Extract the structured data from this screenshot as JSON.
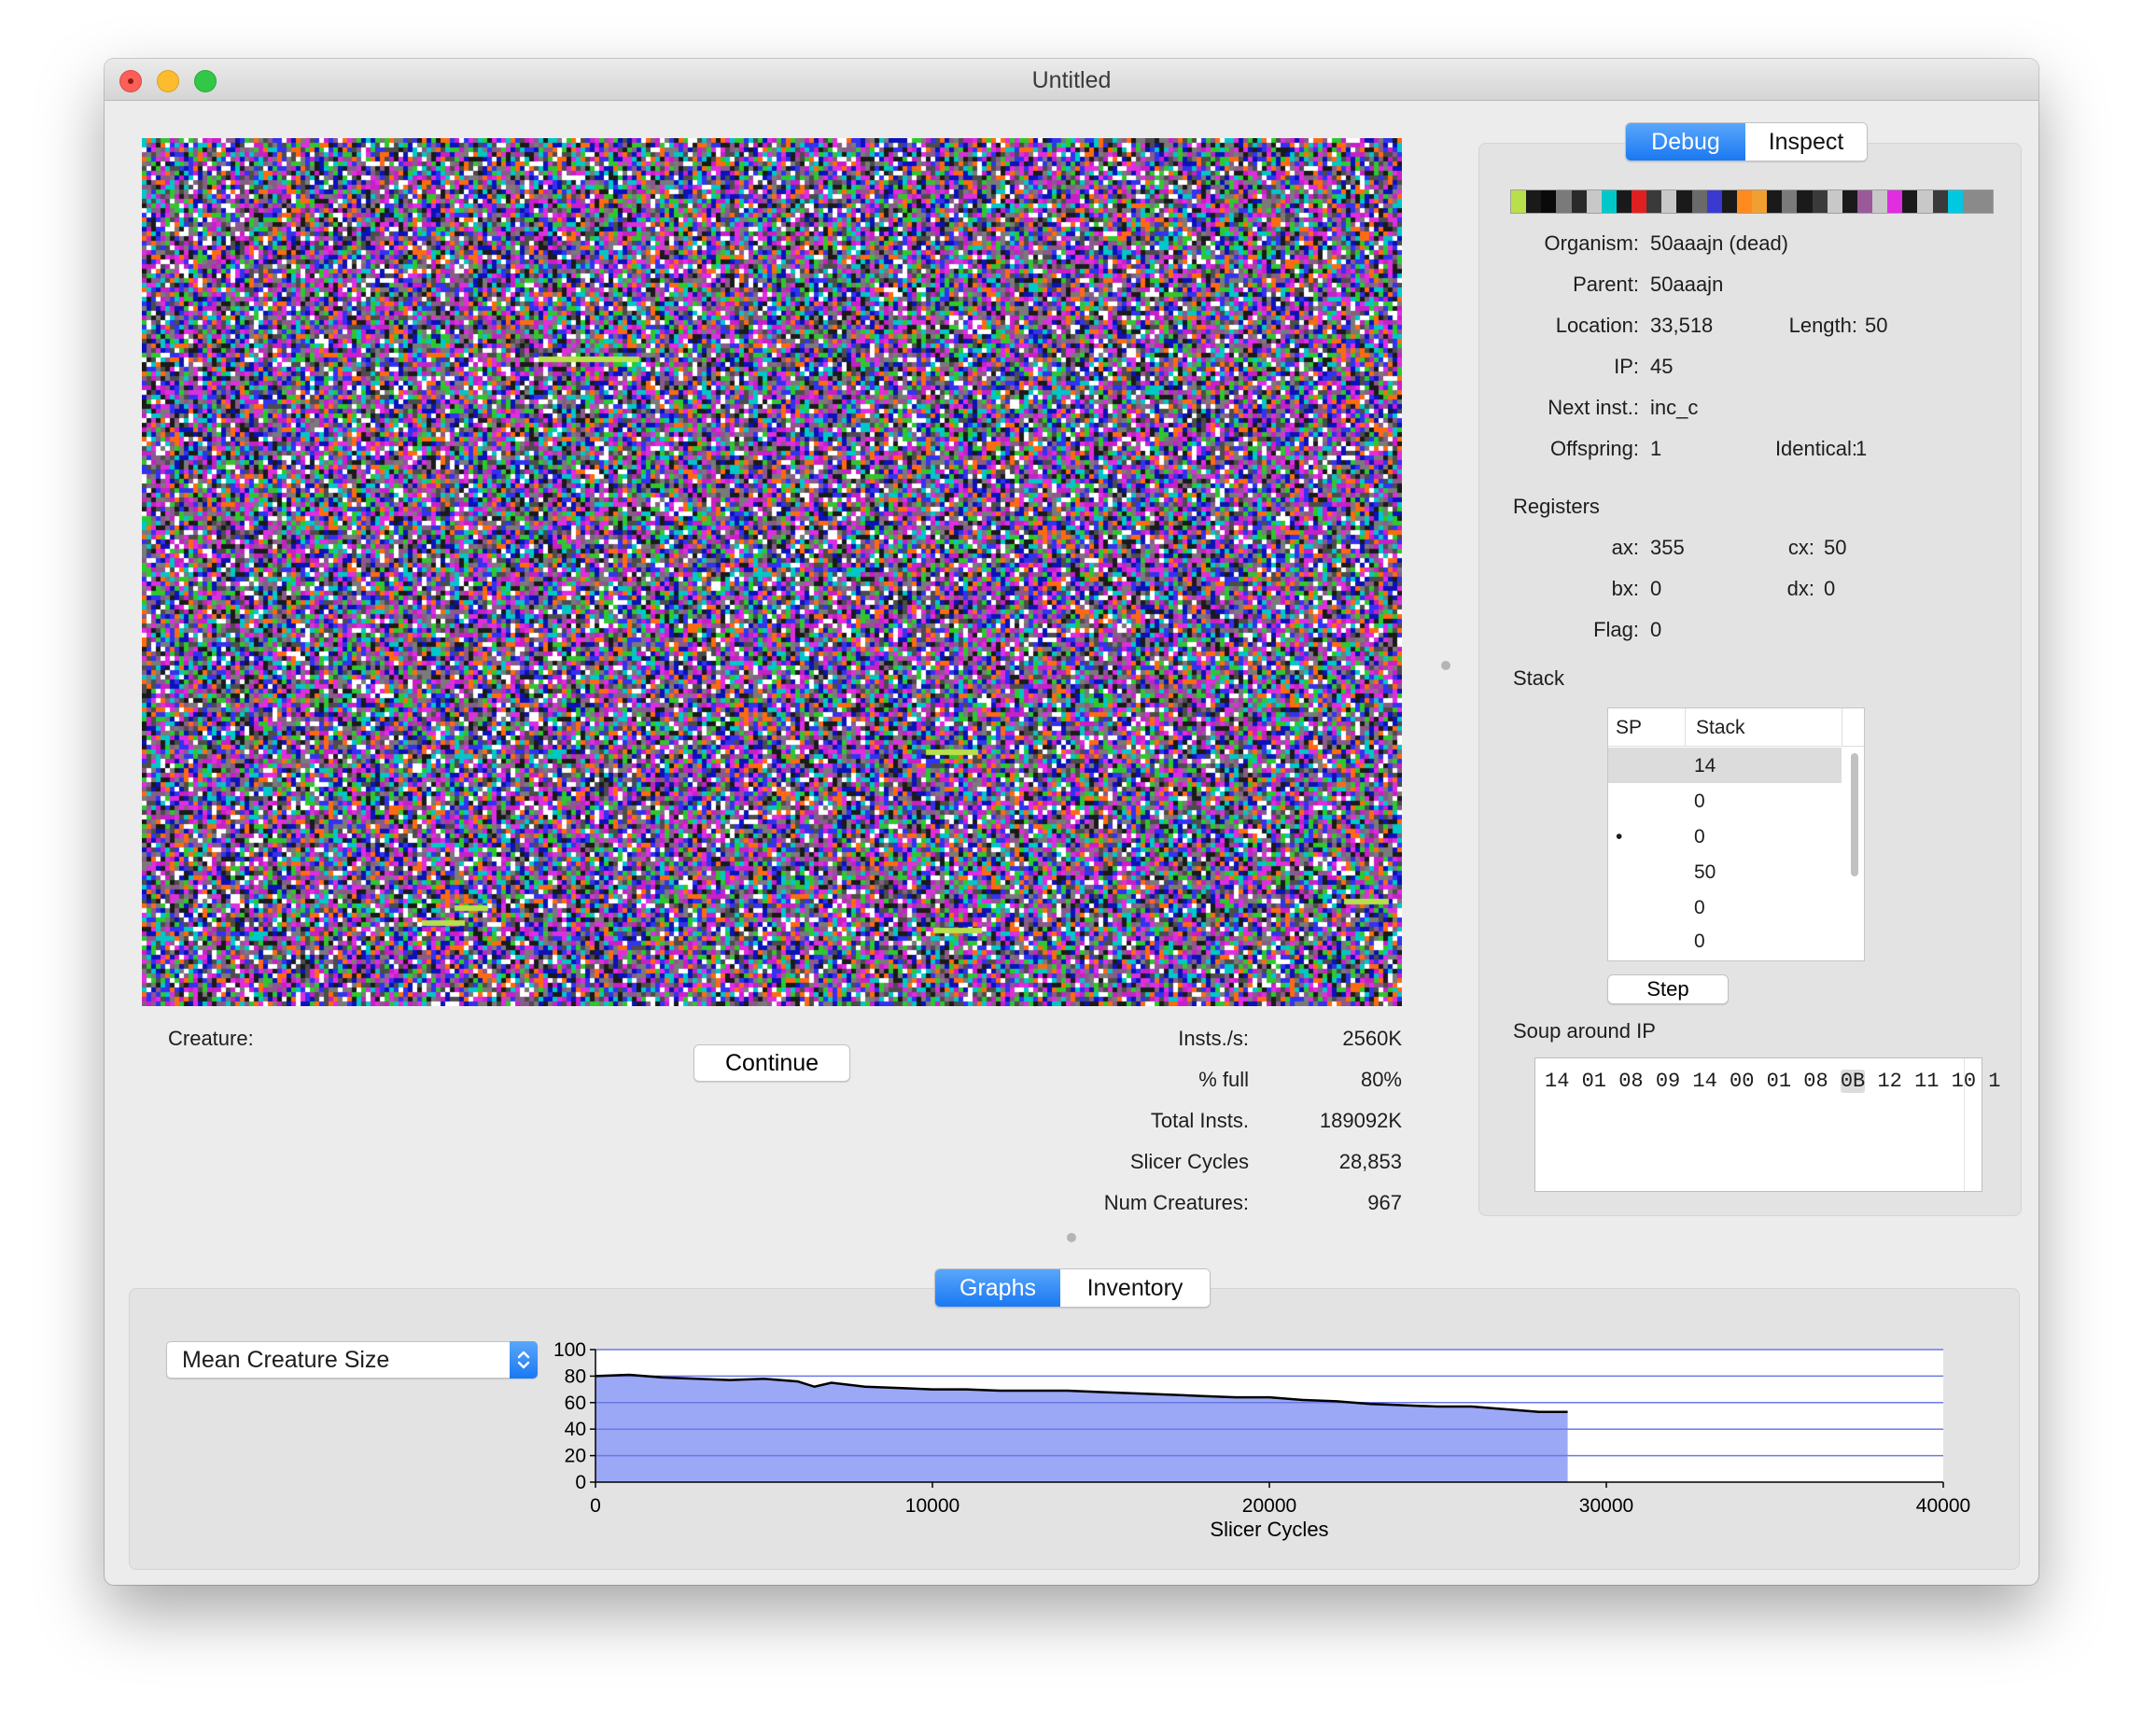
{
  "window": {
    "title": "Untitled"
  },
  "soup_colors": [
    "#1a1a1a",
    "#0b12b8",
    "#c81fc8",
    "#ff6a10",
    "#7a7a7a",
    "#3232f0",
    "#e02de0",
    "#00c8c8",
    "#2ec82e",
    "#ffffff",
    "#8a5a8a",
    "#4c4c4c"
  ],
  "creature_label": "Creature:",
  "continue_label": "Continue",
  "stats": [
    {
      "label": "Insts./s:",
      "value": "2560K"
    },
    {
      "label": "% full",
      "value": "80%"
    },
    {
      "label": "Total Insts.",
      "value": "189092K"
    },
    {
      "label": "Slicer Cycles",
      "value": "28,853"
    },
    {
      "label": "Num Creatures:",
      "value": "967"
    }
  ],
  "right_tabs": {
    "debug": "Debug",
    "inspect": "Inspect",
    "selected": "Debug"
  },
  "genome_bar_colors": [
    "#b7e04a",
    "#1a1a1a",
    "#0a0a0a",
    "#7a7a7a",
    "#2a2a2a",
    "#c8c8c8",
    "#00c8c8",
    "#1a1a1a",
    "#e02020",
    "#3a3a3a",
    "#c8c8c8",
    "#1a1a1a",
    "#6a6a6a",
    "#3a3ad0",
    "#1a1a1a",
    "#ff8a20",
    "#f0a030",
    "#1a1a1a",
    "#7a7a7a",
    "#1a1a1a",
    "#3a3a3a",
    "#c8c8c8",
    "#1a1a1a",
    "#9a5a9a",
    "#c8c8c8",
    "#e02de0",
    "#1a1a1a",
    "#c8c8c8",
    "#3a3a3a",
    "#00c8e0",
    "#8a8a8a",
    "#8a8a8a"
  ],
  "debug": {
    "organism_label": "Organism:",
    "organism_value": "50aaajn (dead)",
    "parent_label": "Parent:",
    "parent_value": "50aaajn",
    "location_label": "Location:",
    "location_value": "33,518",
    "length_label": "Length:",
    "length_value": "50",
    "ip_label": "IP:",
    "ip_value": "45",
    "next_label": "Next inst.:",
    "next_value": "inc_c",
    "offspring_label": "Offspring:",
    "offspring_value": "1",
    "identical_label": "Identical:",
    "identical_value": "1",
    "registers_title": "Registers",
    "ax_label": "ax:",
    "ax_value": "355",
    "cx_label": "cx:",
    "cx_value": "50",
    "bx_label": "bx:",
    "bx_value": "0",
    "dx_label": "dx:",
    "dx_value": "0",
    "flag_label": "Flag:",
    "flag_value": "0",
    "stack_title": "Stack",
    "stack_headers": {
      "sp": "SP",
      "stack": "Stack"
    },
    "stack_rows": [
      {
        "sp": "",
        "value": "14"
      },
      {
        "sp": "",
        "value": "0"
      },
      {
        "sp": "•",
        "value": "0"
      },
      {
        "sp": "",
        "value": "50"
      },
      {
        "sp": "",
        "value": "0"
      },
      {
        "sp": "",
        "value": "0"
      }
    ],
    "step_label": "Step",
    "soup_title": "Soup around IP",
    "soup_bytes_before": "14 01 08 09 14 00 01 08 ",
    "soup_bytes_ip": "0B",
    "soup_bytes_after": " 12 11 10 1"
  },
  "bottom_tabs": {
    "graphs": "Graphs",
    "inventory": "Inventory",
    "selected": "Graphs"
  },
  "graph_select": "Mean Creature Size",
  "chart_data": {
    "type": "area",
    "title": "",
    "xlabel": "Slicer Cycles",
    "ylabel": "",
    "xlim": [
      0,
      40000
    ],
    "ylim": [
      0,
      100
    ],
    "x_ticks": [
      "0",
      "10000",
      "20000",
      "30000",
      "40000"
    ],
    "y_ticks": [
      "0",
      "20",
      "40",
      "60",
      "80",
      "100"
    ],
    "grid": true,
    "series": [
      {
        "x": [
          0,
          1000,
          2000,
          3000,
          4000,
          5000,
          6000,
          6500,
          7000,
          8000,
          9000,
          10000,
          11000,
          12000,
          13000,
          14000,
          15000,
          16000,
          17000,
          18000,
          19000,
          20000,
          21000,
          22000,
          23000,
          24000,
          25000,
          26000,
          27000,
          28000,
          28853
        ],
        "values": [
          80,
          81,
          79,
          78,
          77,
          78,
          76,
          72,
          75,
          72,
          71,
          70,
          70,
          69,
          69,
          69,
          68,
          67,
          66,
          65,
          64,
          64,
          62,
          61,
          59,
          58,
          57,
          57,
          55,
          53,
          53
        ]
      }
    ],
    "fill_color": "#9aa8f5",
    "line_color": "#000000"
  }
}
